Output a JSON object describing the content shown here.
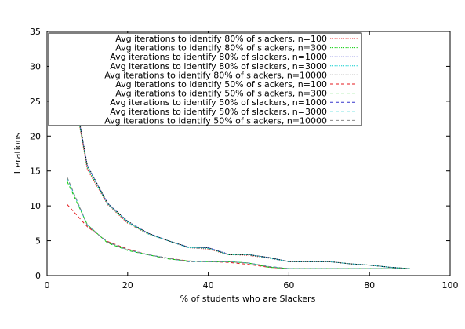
{
  "chart_data": {
    "type": "line",
    "title": "",
    "xlabel": "% of students who are Slackers",
    "ylabel": "Iterations",
    "xlim": [
      0,
      100
    ],
    "ylim": [
      0,
      35
    ],
    "x_ticks": [
      0,
      20,
      40,
      60,
      80,
      100
    ],
    "y_ticks": [
      0,
      5,
      10,
      15,
      20,
      25,
      30,
      35
    ],
    "grid": false,
    "legend_position": "top-right",
    "x": [
      5,
      10,
      15,
      20,
      25,
      30,
      35,
      40,
      45,
      50,
      55,
      60,
      65,
      70,
      75,
      80,
      85,
      90
    ],
    "series": [
      {
        "name": "Avg iterations to identify 80% of slackers, n=100",
        "color": "#e41a1c",
        "dash": "dotted",
        "values": [
          31.5,
          15.2,
          10.2,
          7.5,
          6.0,
          5.0,
          4.0,
          3.8,
          3.0,
          2.9,
          2.5,
          2.0,
          2.0,
          2.0,
          1.7,
          1.5,
          1.2,
          1.0
        ]
      },
      {
        "name": "Avg iterations to identify 80% of slackers, n=300",
        "color": "#00cc00",
        "dash": "dotted",
        "values": [
          31.3,
          15.4,
          10.3,
          7.6,
          6.0,
          5.0,
          4.1,
          3.9,
          3.0,
          3.0,
          2.6,
          2.0,
          2.0,
          2.0,
          1.7,
          1.5,
          1.2,
          1.0
        ]
      },
      {
        "name": "Avg iterations to identify 80% of slackers, n=1000",
        "color": "#3333cc",
        "dash": "dotted",
        "values": [
          31.7,
          15.7,
          10.4,
          7.7,
          6.1,
          5.0,
          4.1,
          4.0,
          3.1,
          3.0,
          2.6,
          2.0,
          2.0,
          2.0,
          1.7,
          1.5,
          1.2,
          1.0
        ]
      },
      {
        "name": "Avg iterations to identify 80% of slackers, n=3000",
        "color": "#00cccc",
        "dash": "dotted",
        "values": [
          31.6,
          15.6,
          10.3,
          7.7,
          6.0,
          5.0,
          4.0,
          3.9,
          3.0,
          3.0,
          2.5,
          2.0,
          2.0,
          2.0,
          1.7,
          1.5,
          1.2,
          1.0
        ]
      },
      {
        "name": "Avg iterations to identify 80% of slackers, n=10000",
        "color": "#000000",
        "dash": "dotted",
        "values": [
          31.9,
          15.8,
          10.4,
          7.8,
          6.1,
          5.0,
          4.1,
          4.0,
          3.0,
          3.0,
          2.6,
          2.0,
          2.0,
          2.0,
          1.7,
          1.5,
          1.2,
          1.0
        ]
      },
      {
        "name": "Avg iterations to identify 50% of slackers, n=100",
        "color": "#e41a1c",
        "dash": "dashed",
        "values": [
          10.2,
          7.0,
          4.9,
          3.8,
          3.0,
          2.5,
          2.1,
          2.0,
          1.9,
          1.6,
          1.2,
          1.0,
          1.0,
          1.0,
          1.0,
          1.0,
          1.0,
          1.0
        ]
      },
      {
        "name": "Avg iterations to identify 50% of slackers, n=300",
        "color": "#00cc00",
        "dash": "dashed",
        "values": [
          13.5,
          7.3,
          4.7,
          3.6,
          3.0,
          2.4,
          2.1,
          2.0,
          2.0,
          1.8,
          1.2,
          1.0,
          1.0,
          1.0,
          1.0,
          1.0,
          1.0,
          1.0
        ]
      },
      {
        "name": "Avg iterations to identify 50% of slackers, n=1000",
        "color": "#3333cc",
        "dash": "dashed",
        "values": [
          14.0,
          7.2,
          4.8,
          3.7,
          3.0,
          2.5,
          2.0,
          2.0,
          2.0,
          1.8,
          1.3,
          1.0,
          1.0,
          1.0,
          1.0,
          1.0,
          1.0,
          1.0
        ]
      },
      {
        "name": "Avg iterations to identify 50% of slackers, n=3000",
        "color": "#00cccc",
        "dash": "dashed",
        "values": [
          14.0,
          7.2,
          4.8,
          3.7,
          3.0,
          2.5,
          2.0,
          2.0,
          2.0,
          1.8,
          1.3,
          1.0,
          1.0,
          1.0,
          1.0,
          1.0,
          1.0,
          1.0
        ]
      },
      {
        "name": "Avg iterations to identify 50% of slackers, n=10000",
        "color": "#888888",
        "dash": "dashed",
        "values": [
          14.1,
          7.2,
          4.8,
          3.7,
          3.0,
          2.5,
          2.0,
          2.0,
          2.0,
          1.8,
          1.3,
          1.0,
          1.0,
          1.0,
          1.0,
          1.0,
          1.0,
          1.0
        ]
      }
    ]
  }
}
